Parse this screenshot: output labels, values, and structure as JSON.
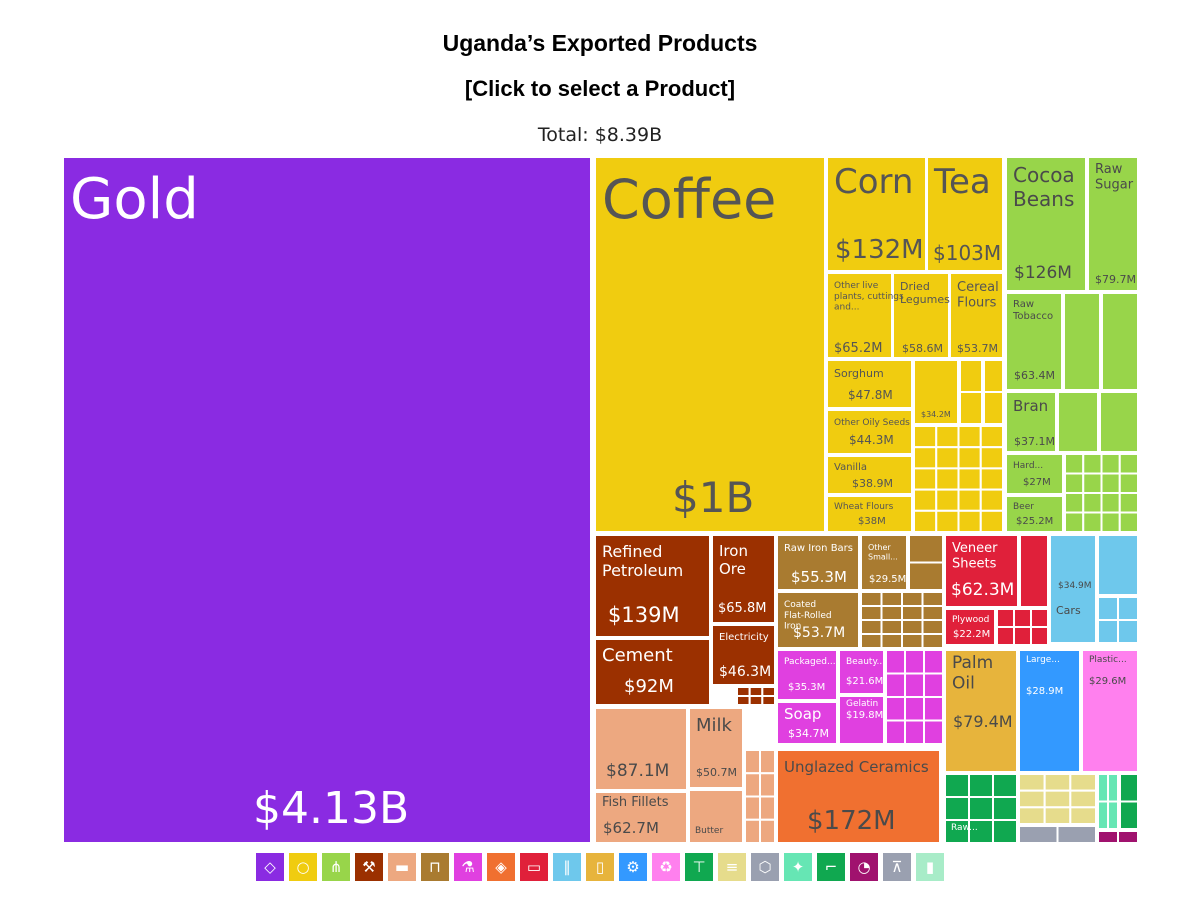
{
  "header": {
    "title": "Uganda’s Exported Products",
    "subtitle": "[Click to select a Product]",
    "total": "Total: $8.39B"
  },
  "colors": {
    "precious": "#8a2be2",
    "vegetable": "#f0cc10",
    "agri": "#98d54a",
    "mineral": "#9b3000",
    "animal": "#eda880",
    "metal": "#a97b30",
    "chemical": "#e040e0",
    "stone": "#f07030",
    "paper": "#e0203a",
    "transport": "#6ec8ec",
    "foodstuff": "#e7b43c",
    "machinery": "#3399ff",
    "plastic": "#ff80ee",
    "textile": "#10a850",
    "instrument": "#e6dc8c",
    "misc": "#9aa0b0",
    "hides": "#66e6b4",
    "weapons": "#a0126e"
  },
  "legend": [
    {
      "icon": "diamond-icon",
      "glyph": "◇",
      "color": "#8a2be2"
    },
    {
      "icon": "fruit-icon",
      "glyph": "○",
      "color": "#f0cc10"
    },
    {
      "icon": "wheat-icon",
      "glyph": "⋔",
      "color": "#98d54a"
    },
    {
      "icon": "pickaxe-icon",
      "glyph": "⚒",
      "color": "#9b3000"
    },
    {
      "icon": "cow-icon",
      "glyph": "▬",
      "color": "#eda880"
    },
    {
      "icon": "anvil-icon",
      "glyph": "⊓",
      "color": "#a97b30"
    },
    {
      "icon": "flask-icon",
      "glyph": "⚗",
      "color": "#e040e0"
    },
    {
      "icon": "rock-icon",
      "glyph": "◈",
      "color": "#f07030"
    },
    {
      "icon": "ticket-icon",
      "glyph": "▭",
      "color": "#e0203a"
    },
    {
      "icon": "road-icon",
      "glyph": "∥",
      "color": "#6ec8ec"
    },
    {
      "icon": "bottle-icon",
      "glyph": "▯",
      "color": "#e7b43c"
    },
    {
      "icon": "gear-icon",
      "glyph": "⚙",
      "color": "#3399ff"
    },
    {
      "icon": "recycle-icon",
      "glyph": "♻",
      "color": "#ff80ee"
    },
    {
      "icon": "shirt-icon",
      "glyph": "⊤",
      "color": "#10a850"
    },
    {
      "icon": "document-icon",
      "glyph": "≡",
      "color": "#e6dc8c"
    },
    {
      "icon": "box-icon",
      "glyph": "⬡",
      "color": "#9aa0b0"
    },
    {
      "icon": "hide-icon",
      "glyph": "✦",
      "color": "#66e6b4"
    },
    {
      "icon": "shoe-icon",
      "glyph": "⌐",
      "color": "#10a850"
    },
    {
      "icon": "gauge-icon",
      "glyph": "◔",
      "color": "#a0126e"
    },
    {
      "icon": "easel-icon",
      "glyph": "⊼",
      "color": "#9aa0b0"
    },
    {
      "icon": "brushes-icon",
      "glyph": "▮",
      "color": "#a8ecc8"
    }
  ],
  "chart_data": {
    "type": "treemap",
    "title": "Uganda’s Exported Products",
    "subtitle": "[Click to select a Product]",
    "total": "Total: $8.39B",
    "items": [
      {
        "name": "Gold",
        "value": "$4.13B",
        "group": "precious"
      },
      {
        "name": "Coffee",
        "value": "$1B",
        "group": "vegetable"
      },
      {
        "name": "Corn",
        "value": "$132M",
        "group": "vegetable"
      },
      {
        "name": "Tea",
        "value": "$103M",
        "group": "vegetable"
      },
      {
        "name": "Other live plants, cuttings and...",
        "value": "$65.2M",
        "group": "vegetable"
      },
      {
        "name": "Dried Legumes",
        "value": "$58.6M",
        "group": "vegetable"
      },
      {
        "name": "Cereal Flours",
        "value": "$53.7M",
        "group": "vegetable"
      },
      {
        "name": "Sorghum",
        "value": "$47.8M",
        "group": "vegetable"
      },
      {
        "name": "Other Oily Seeds",
        "value": "$44.3M",
        "group": "vegetable"
      },
      {
        "name": "Vanilla",
        "value": "$38.9M",
        "group": "vegetable"
      },
      {
        "name": "Wheat Flours",
        "value": "$38M",
        "group": "vegetable"
      },
      {
        "name": "",
        "value": "$34.2M",
        "group": "vegetable"
      },
      {
        "name": "Cocoa Beans",
        "value": "$126M",
        "group": "agri"
      },
      {
        "name": "Raw Sugar",
        "value": "$79.7M",
        "group": "agri"
      },
      {
        "name": "Raw Tobacco",
        "value": "$63.4M",
        "group": "agri"
      },
      {
        "name": "Bran",
        "value": "$37.1M",
        "group": "agri"
      },
      {
        "name": "Hard...",
        "value": "$27M",
        "group": "agri"
      },
      {
        "name": "Beer",
        "value": "$25.2M",
        "group": "agri"
      },
      {
        "name": "Refined Petroleum",
        "value": "$139M",
        "group": "mineral"
      },
      {
        "name": "Iron Ore",
        "value": "$65.8M",
        "group": "mineral"
      },
      {
        "name": "Electricity",
        "value": "$46.3M",
        "group": "mineral"
      },
      {
        "name": "Cement",
        "value": "$92M",
        "group": "mineral"
      },
      {
        "name": "Raw Iron Bars",
        "value": "$55.3M",
        "group": "metal"
      },
      {
        "name": "Other Small...",
        "value": "$29.5M",
        "group": "metal"
      },
      {
        "name": "Coated Flat-Rolled Iron",
        "value": "$53.7M",
        "group": "metal"
      },
      {
        "name": "Veneer Sheets",
        "value": "$62.3M",
        "group": "paper"
      },
      {
        "name": "Plywood",
        "value": "$22.2M",
        "group": "paper"
      },
      {
        "name": "",
        "value": "$34.9M",
        "group": "transport"
      },
      {
        "name": "Cars",
        "value": "",
        "group": "transport"
      },
      {
        "name": "Packaged...",
        "value": "$35.3M",
        "group": "chemical"
      },
      {
        "name": "Beauty...",
        "value": "$21.6M",
        "group": "chemical"
      },
      {
        "name": "Gelatin",
        "value": "$19.8M",
        "group": "chemical"
      },
      {
        "name": "Soap",
        "value": "$34.7M",
        "group": "chemical"
      },
      {
        "name": "Palm Oil",
        "value": "$79.4M",
        "group": "foodstuff"
      },
      {
        "name": "Large...",
        "value": "$28.9M",
        "group": "machinery"
      },
      {
        "name": "Plastic...",
        "value": "$29.6M",
        "group": "plastic"
      },
      {
        "name": "Fish Fillets",
        "value": "$62.7M",
        "group": "animal"
      },
      {
        "name": "",
        "value": "$87.1M",
        "group": "animal"
      },
      {
        "name": "Milk",
        "value": "$50.7M",
        "group": "animal"
      },
      {
        "name": "Butter",
        "value": "",
        "group": "animal"
      },
      {
        "name": "Unglazed Ceramics",
        "value": "$172M",
        "group": "stone"
      },
      {
        "name": "Raw...",
        "value": "",
        "group": "textile"
      }
    ]
  }
}
